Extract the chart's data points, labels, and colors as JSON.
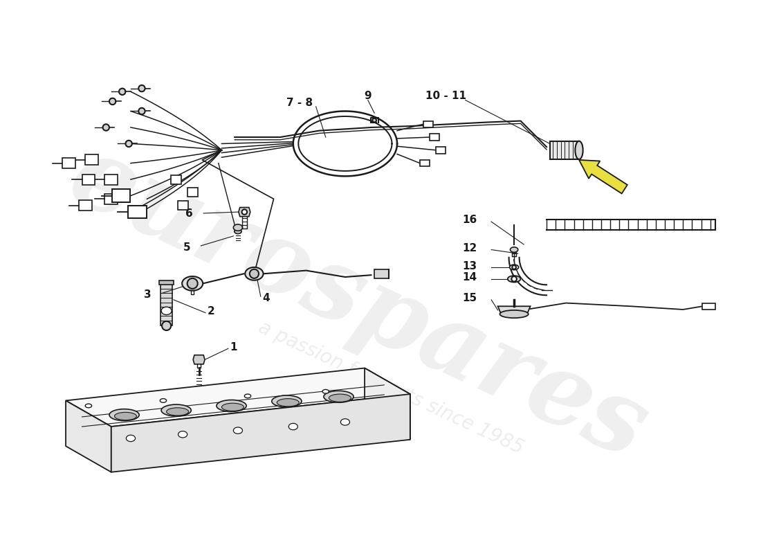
{
  "background_color": "#ffffff",
  "line_color": "#1a1a1a",
  "watermark_text1": "eurospares",
  "watermark_text2": "a passion for parts since 1985",
  "watermark_color": "#c8c8c8",
  "arrow_color": "#e8e040",
  "fig_width": 11.0,
  "fig_height": 8.0,
  "dpi": 100
}
